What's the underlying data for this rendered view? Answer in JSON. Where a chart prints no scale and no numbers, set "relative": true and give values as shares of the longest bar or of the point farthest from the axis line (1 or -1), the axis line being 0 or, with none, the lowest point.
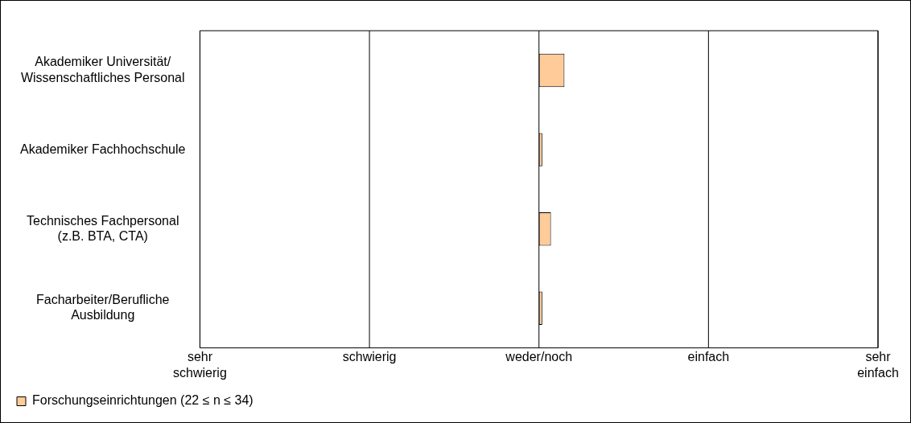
{
  "chart_data": {
    "type": "bar",
    "orientation": "horizontal",
    "relative": true,
    "categories": [
      "Akademiker Universität/\nWissenschaftliches Personal",
      "Akademiker Fachhochschule",
      "Technisches Fachpersonal\n(z.B. BTA, CTA)",
      "Facharbeiter/Berufliche\nAusbildung"
    ],
    "series": [
      {
        "name": "Forschungseinrichtungen (22 ≤ n ≤ 34)",
        "color": "#ffcc99",
        "values": [
          1,
          0.13,
          0.47,
          0.13
        ]
      }
    ],
    "annotations": [
      "sehr\nschwierig",
      "schwierig",
      "weder/noch",
      "einfach",
      "sehr\neinfach"
    ],
    "legend": "bottom left"
  }
}
